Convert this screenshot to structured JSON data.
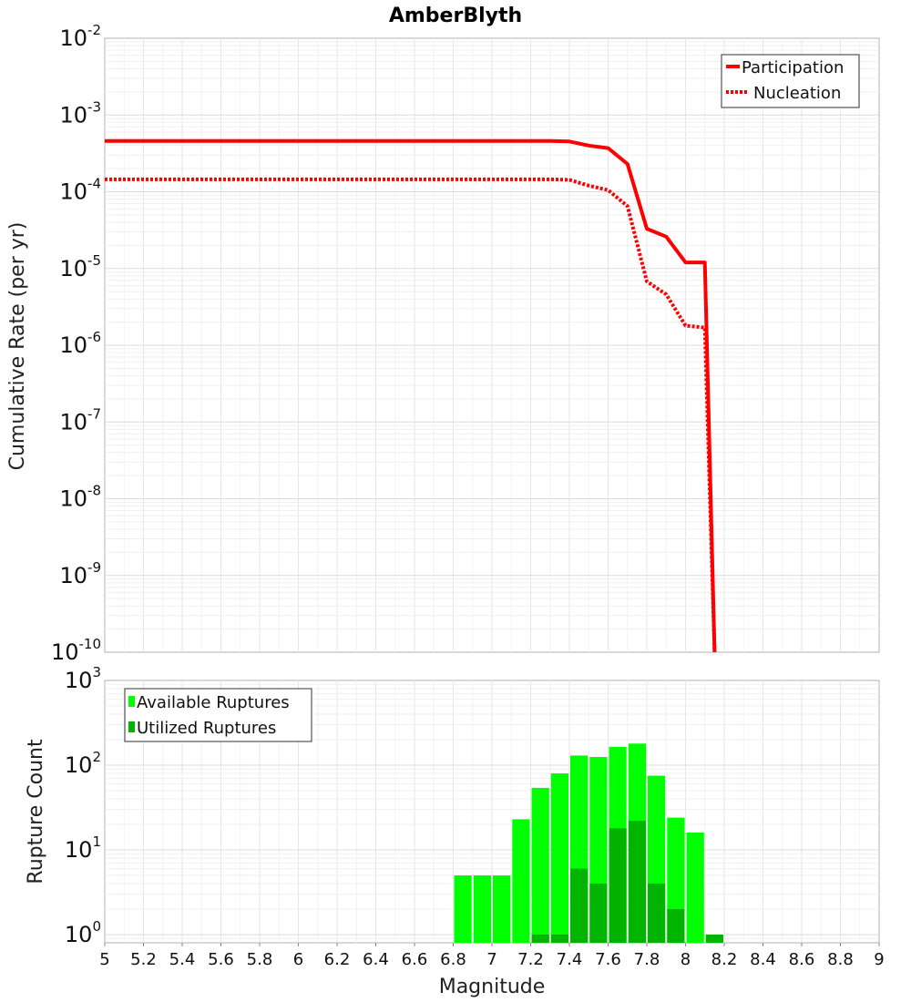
{
  "chart_data": [
    {
      "type": "line",
      "title": "AmberBlyth",
      "xlabel": "Magnitude",
      "ylabel": "Cumulative Rate (per yr)",
      "yscale": "log",
      "xlim": [
        5,
        9
      ],
      "ylim": [
        1e-10,
        0.01
      ],
      "y_tick_exponents": [
        "-2",
        "-3",
        "-4",
        "-5",
        "-6",
        "-7",
        "-8",
        "-9",
        "-10"
      ],
      "legend": "top-right",
      "colors": {
        "participation": "#ff0000",
        "nucleation": "#ff0000"
      },
      "series": [
        {
          "name": "Participation",
          "style": "solid",
          "x": [
            5.0,
            5.1,
            5.2,
            5.3,
            5.4,
            5.5,
            5.6,
            5.7,
            5.8,
            5.9,
            6.0,
            6.1,
            6.2,
            6.3,
            6.4,
            6.5,
            6.6,
            6.7,
            6.8,
            6.9,
            7.0,
            7.1,
            7.2,
            7.3,
            7.4,
            7.5,
            7.6,
            7.7,
            7.8,
            7.9,
            8.0,
            8.1,
            8.15
          ],
          "y": [
            0.00046,
            0.00046,
            0.00046,
            0.00046,
            0.00046,
            0.00046,
            0.00046,
            0.00046,
            0.00046,
            0.00046,
            0.00046,
            0.00046,
            0.00046,
            0.00046,
            0.00046,
            0.00046,
            0.00046,
            0.00046,
            0.00046,
            0.00046,
            0.00046,
            0.00046,
            0.00046,
            0.000458,
            0.000452,
            0.0004,
            0.00037,
            0.00023,
            3.3e-05,
            2.6e-05,
            1.2e-05,
            1.2e-05,
            1e-10
          ]
        },
        {
          "name": "Nucleation",
          "style": "dotted",
          "x": [
            5.0,
            5.1,
            5.2,
            5.3,
            5.4,
            5.5,
            5.6,
            5.7,
            5.8,
            5.9,
            6.0,
            6.1,
            6.2,
            6.3,
            6.4,
            6.5,
            6.6,
            6.7,
            6.8,
            6.9,
            7.0,
            7.1,
            7.2,
            7.3,
            7.4,
            7.5,
            7.6,
            7.7,
            7.8,
            7.9,
            8.0,
            8.1,
            8.15
          ],
          "y": [
            0.000145,
            0.000145,
            0.000145,
            0.000145,
            0.000145,
            0.000145,
            0.000145,
            0.000145,
            0.000145,
            0.000145,
            0.000145,
            0.000145,
            0.000145,
            0.000145,
            0.000145,
            0.000145,
            0.000145,
            0.000145,
            0.000145,
            0.000145,
            0.000145,
            0.000145,
            0.000145,
            0.000145,
            0.000143,
            0.00012,
            0.000105,
            6.5e-05,
            6.8e-06,
            4.6e-06,
            1.8e-06,
            1.7e-06,
            1e-10
          ]
        }
      ]
    },
    {
      "type": "bar",
      "xlabel": "Magnitude",
      "ylabel": "Rupture Count",
      "yscale": "log",
      "xlim": [
        5,
        9
      ],
      "ylim": [
        0.8,
        1000
      ],
      "y_tick_exponents": [
        "3",
        "2",
        "1",
        "0"
      ],
      "x_ticks": [
        "5",
        "5.2",
        "5.4",
        "5.6",
        "5.8",
        "6",
        "6.2",
        "6.4",
        "6.6",
        "6.8",
        "7",
        "7.2",
        "7.4",
        "7.6",
        "7.8",
        "8",
        "8.2",
        "8.4",
        "8.6",
        "8.8",
        "9"
      ],
      "bin_width": 0.1,
      "legend": "top-left",
      "colors": {
        "available": "#00ff00",
        "utilized": "#00b400"
      },
      "series": [
        {
          "name": "Available Ruptures",
          "bin_centers": [
            6.85,
            6.95,
            7.05,
            7.15,
            7.25,
            7.35,
            7.45,
            7.55,
            7.65,
            7.75,
            7.85,
            7.95,
            8.05
          ],
          "values": [
            5,
            5,
            5,
            23,
            54,
            80,
            130,
            125,
            165,
            180,
            75,
            24,
            16
          ]
        },
        {
          "name": "Utilized Ruptures",
          "bin_centers": [
            7.25,
            7.35,
            7.45,
            7.55,
            7.65,
            7.75,
            7.85,
            7.95,
            8.15
          ],
          "values": [
            1,
            1,
            6,
            4,
            18,
            22,
            4,
            2,
            1
          ]
        }
      ]
    }
  ]
}
